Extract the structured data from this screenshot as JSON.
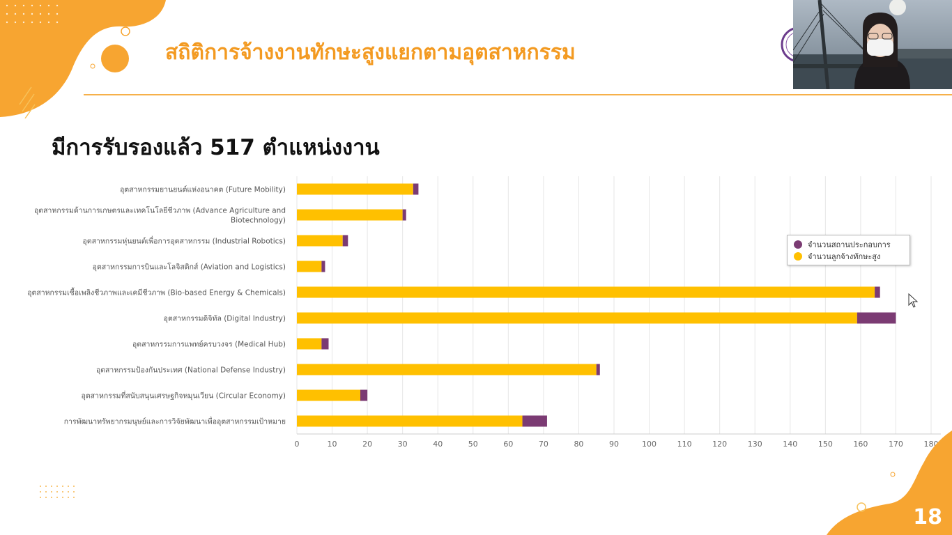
{
  "slide": {
    "title": "สถิติการจ้างงานทักษะสูงแยกตามอุตสาหกรรม",
    "subtitle": "มีการรับรองแล้ว 517 ตำแหน่งงาน",
    "page_number": "18"
  },
  "colors": {
    "accent_orange": "#f39a21",
    "series_employees": "#ffc000",
    "series_companies": "#7b3b73"
  },
  "chart_data": {
    "type": "bar",
    "orientation": "horizontal",
    "stacked": true,
    "categories": [
      "อุตสาหกรรมยานยนต์แห่งอนาคต (Future Mobility)",
      "อุตสาหกรรมด้านการเกษตรและเทคโนโลยีชีวภาพ (Advance Agriculture and Biotechnology)",
      "อุตสาหกรรมหุ่นยนต์เพื่อการอุตสาหกรรม (Industrial Robotics)",
      "อุตสาหกรรมการบินและโลจิสติกส์ (Aviation and Logistics)",
      "อุตสาหกรรมเชื้อเพลิงชีวภาพและเคมีชีวภาพ (Bio-based Energy & Chemicals)",
      "อุตสาหกรรมดิจิทัล (Digital Industry)",
      "อุตสาหกรรมการแพทย์ครบวงจร (Medical Hub)",
      "อุตสาหกรรมป้องกันประเทศ (National Defense Industry)",
      "อุตสาหกรรมที่สนับสนุนเศรษฐกิจหมุนเวียน (Circular Economy)",
      "การพัฒนาทรัพยากรมนุษย์และการวิจัยพัฒนาเพื่ออุตสาหกรรมเป้าหมาย"
    ],
    "category_lines": [
      [
        "อุตสาหกรรมยานยนต์แห่งอนาคต (Future Mobility)"
      ],
      [
        "อุตสาหกรรมด้านการเกษตรและเทคโนโลยีชีวภาพ (Advance Agriculture and",
        "Biotechnology)"
      ],
      [
        "อุตสาหกรรมหุ่นยนต์เพื่อการอุตสาหกรรม (Industrial Robotics)"
      ],
      [
        "อุตสาหกรรมการบินและโลจิสติกส์ (Aviation and Logistics)"
      ],
      [
        "อุตสาหกรรมเชื้อเพลิงชีวภาพและเคมีชีวภาพ (Bio-based Energy & Chemicals)"
      ],
      [
        "อุตสาหกรรมดิจิทัล (Digital Industry)"
      ],
      [
        "อุตสาหกรรมการแพทย์ครบวงจร (Medical Hub)"
      ],
      [
        "อุตสาหกรรมป้องกันประเทศ (National Defense Industry)"
      ],
      [
        "อุตสาหกรรมที่สนับสนุนเศรษฐกิจหมุนเวียน (Circular Economy)"
      ],
      [
        "การพัฒนาทรัพยากรมนุษย์และการวิจัยพัฒนาเพื่ออุตสาหกรรมเป้าหมาย"
      ]
    ],
    "series": [
      {
        "name": "จำนวนลูกจ้างทักษะสูง",
        "color": "#ffc000",
        "values": [
          33,
          30,
          13,
          7,
          164,
          159,
          7,
          85,
          18,
          64
        ]
      },
      {
        "name": "จำนวนสถานประกอบการ",
        "color": "#7b3b73",
        "values": [
          1.5,
          1,
          1.5,
          1,
          1.5,
          11,
          2,
          1,
          2,
          7
        ]
      }
    ],
    "xlim": [
      0,
      180
    ],
    "xticks": [
      0,
      10,
      20,
      30,
      40,
      50,
      60,
      70,
      80,
      90,
      100,
      110,
      120,
      130,
      140,
      150,
      160,
      170,
      180
    ],
    "grid": true,
    "legend_position": "right"
  }
}
